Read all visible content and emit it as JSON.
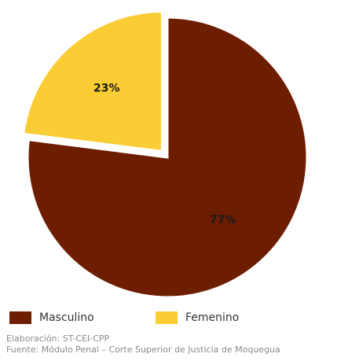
{
  "chart_data": {
    "type": "pie",
    "categories": [
      "Masculino",
      "Femenino"
    ],
    "values": [
      77,
      23
    ],
    "data_labels": [
      "77%",
      "23%"
    ],
    "colors": [
      "#6e1e00",
      "#fbcd35"
    ],
    "exploded": "Femenino",
    "legend_position": "bottom",
    "title": ""
  },
  "legend": {
    "items": [
      {
        "label": "Masculino",
        "color": "#6e1e00"
      },
      {
        "label": "Femenino",
        "color": "#fbcd35"
      }
    ]
  },
  "footer": {
    "elaboracion": "Elaboración: ST-CEI-CPP",
    "fuente": "Fuente: Módulo Penal – Corte Superior de Justicia de Moquegua"
  }
}
